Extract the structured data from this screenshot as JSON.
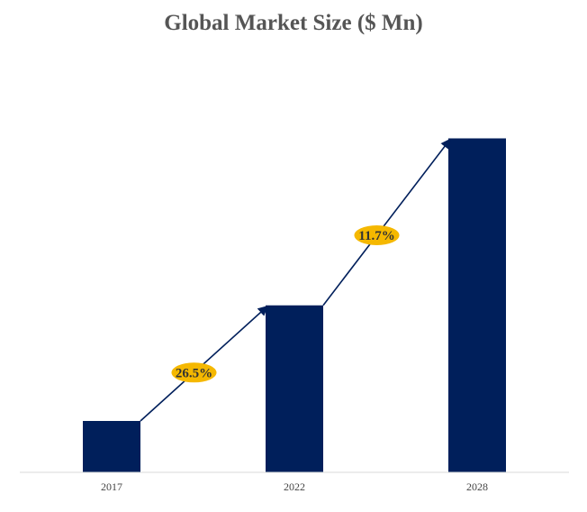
{
  "chart_data": {
    "type": "bar",
    "title": "Global Market Size ($ Mn)",
    "categories": [
      "2017",
      "2022",
      "2028"
    ],
    "values": [
      1.0,
      3.25,
      6.5
    ],
    "xlabel": "",
    "ylabel": "",
    "ylim": [
      0,
      7.0
    ],
    "grid": false,
    "legend": "none",
    "bar_color": "#001f5b",
    "annotations": [
      {
        "label": "26.5%",
        "from": "2017",
        "to": "2022",
        "color": "#f5b800"
      },
      {
        "label": "11.7%",
        "from": "2022",
        "to": "2028",
        "color": "#f5b800"
      }
    ]
  }
}
